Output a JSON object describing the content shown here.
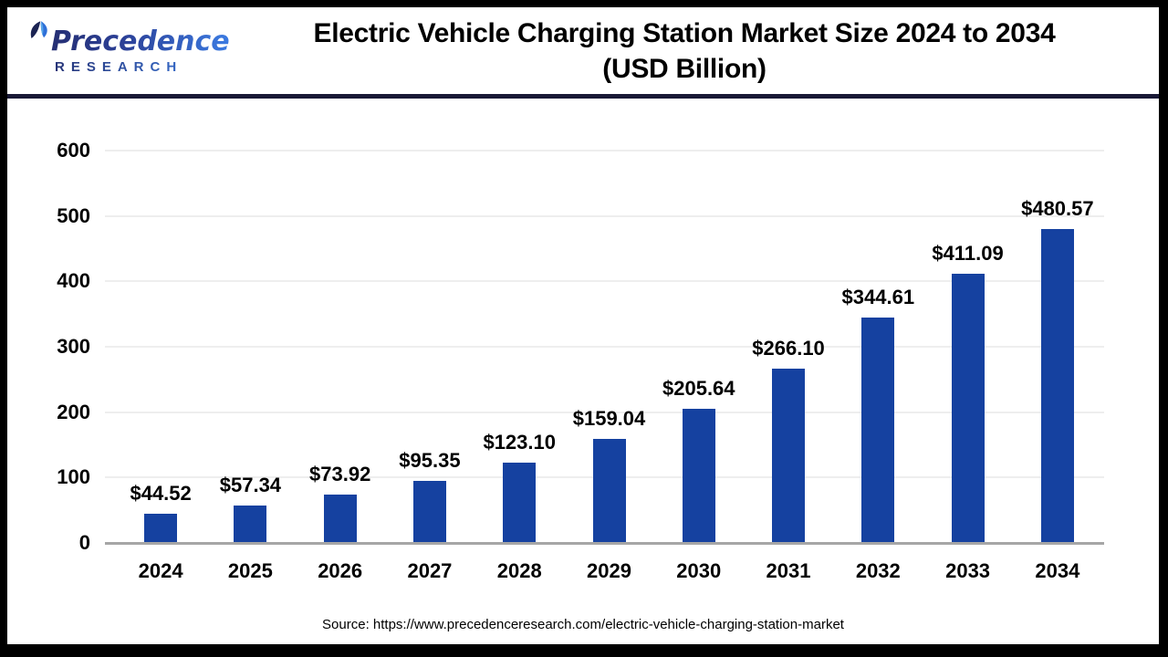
{
  "header": {
    "logo": {
      "brand_top": "Precedence",
      "brand_bottom": "RESEARCH"
    },
    "title_line1": "Electric Vehicle Charging Station Market Size 2024 to 2034",
    "title_line2": "(USD Billion)"
  },
  "footer": {
    "source": "Source: https://www.precedenceresearch.com/electric-vehicle-charging-station-market"
  },
  "colors": {
    "bar": "#1541a0",
    "baseline": "#a6a6a6",
    "gridline": "#eeeeee",
    "header_rule": "#191936",
    "brand_gradient_start": "#232a68",
    "brand_gradient_end": "#3c7ee6"
  },
  "chart_data": {
    "type": "bar",
    "title": "Electric Vehicle Charging Station Market Size 2024 to 2034 (USD Billion)",
    "categories": [
      "2024",
      "2025",
      "2026",
      "2027",
      "2028",
      "2029",
      "2030",
      "2031",
      "2032",
      "2033",
      "2034"
    ],
    "values": [
      44.52,
      57.34,
      73.92,
      95.35,
      123.1,
      159.04,
      205.64,
      266.1,
      344.61,
      411.09,
      480.57
    ],
    "value_labels": [
      "$44.52",
      "$57.34",
      "$73.92",
      "$95.35",
      "$123.10",
      "$159.04",
      "$205.64",
      "$266.10",
      "$344.61",
      "$411.09",
      "$480.57"
    ],
    "xlabel": "",
    "ylabel": "",
    "ylim": [
      0,
      600
    ],
    "yticks": [
      0,
      100,
      200,
      300,
      400,
      500,
      600
    ],
    "grid": "horizontal",
    "legend": "none",
    "bar_color": "#1541a0"
  }
}
